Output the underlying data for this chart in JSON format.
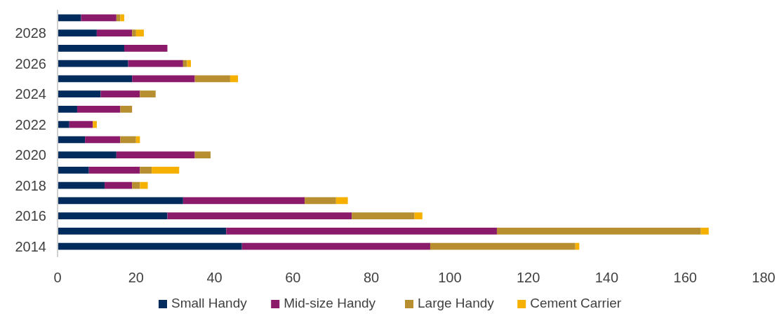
{
  "chart_data": {
    "type": "bar",
    "orientation": "horizontal",
    "stacked": true,
    "categories": [
      null,
      "2028",
      null,
      "2026",
      null,
      "2024",
      null,
      "2022",
      null,
      "2020",
      null,
      "2018",
      null,
      "2016",
      null,
      "2014"
    ],
    "series": [
      {
        "name": "Small Handy",
        "color": "#002b5c",
        "values": [
          6,
          10,
          17,
          18,
          19,
          11,
          5,
          3,
          7,
          15,
          8,
          12,
          32,
          28,
          43,
          47
        ]
      },
      {
        "name": "Mid-size Handy",
        "color": "#8b1a6b",
        "values": [
          9,
          9,
          11,
          14,
          16,
          10,
          11,
          6,
          9,
          20,
          13,
          7,
          31,
          47,
          69,
          48
        ]
      },
      {
        "name": "Large Handy",
        "color": "#b78f30",
        "values": [
          1,
          1,
          0,
          1,
          9,
          4,
          3,
          0,
          4,
          4,
          3,
          2,
          8,
          16,
          52,
          37
        ]
      },
      {
        "name": "Cement Carrier",
        "color": "#f5b000",
        "values": [
          1,
          2,
          0,
          1,
          2,
          0,
          0,
          1,
          1,
          0,
          7,
          2,
          3,
          2,
          2,
          1
        ]
      }
    ],
    "xlim": [
      0,
      180
    ],
    "xticks": [
      0,
      20,
      40,
      60,
      80,
      100,
      120,
      140,
      160,
      180
    ],
    "grid": false,
    "legend": "bottom"
  }
}
